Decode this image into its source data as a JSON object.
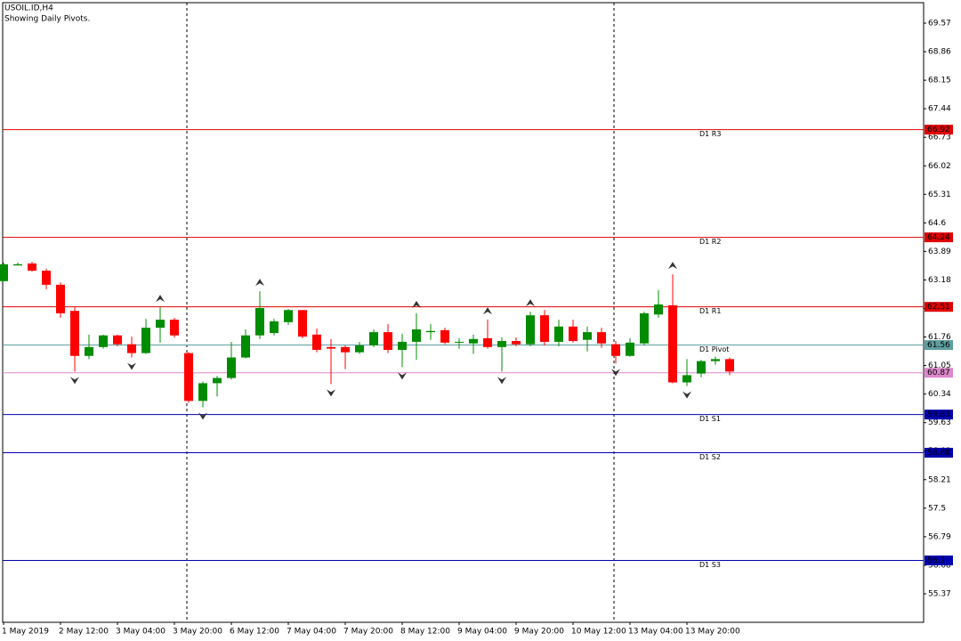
{
  "chart_data": {
    "type": "candlestick",
    "title": "USOIL.ID,H4",
    "subtitle": "Showing Daily Pivots.",
    "categories": [
      "1 May 2019",
      null,
      null,
      null,
      "2 May 12:00",
      null,
      null,
      null,
      "3 May 04:00",
      null,
      null,
      null,
      "3 May 20:00",
      null,
      null,
      null,
      "6 May 12:00",
      null,
      null,
      null,
      "7 May 04:00",
      null,
      null,
      null,
      "7 May 20:00",
      null,
      null,
      null,
      "8 May 12:00",
      null,
      null,
      null,
      "9 May 04:00",
      null,
      null,
      null,
      "9 May 20:00",
      null,
      null,
      null,
      "10 May 12:00",
      null,
      null,
      null,
      "13 May 04:00",
      null,
      null,
      null,
      "13 May 20:00",
      null,
      null,
      null
    ],
    "open": [
      63.15,
      63.54,
      63.59,
      63.41,
      63.06,
      62.41,
      61.29,
      61.51,
      61.8,
      61.58,
      61.36,
      61.99,
      62.19,
      61.36,
      60.17,
      60.61,
      60.74,
      61.25,
      61.8,
      61.86,
      62.13,
      62.43,
      61.82,
      61.51,
      61.51,
      61.38,
      61.55,
      61.88,
      61.44,
      61.64,
      61.88,
      61.93,
      61.62,
      61.6,
      61.73,
      61.51,
      61.66,
      61.58,
      62.3,
      61.64,
      62.02,
      61.69,
      61.88,
      61.58,
      61.29,
      61.6,
      62.32,
      62.55,
      60.63,
      60.85,
      61.16,
      61.21
    ],
    "high": [
      63.61,
      63.61,
      63.63,
      63.46,
      63.12,
      62.5,
      61.82,
      61.82,
      61.82,
      61.77,
      62.21,
      62.5,
      62.24,
      61.38,
      60.65,
      60.79,
      61.64,
      61.95,
      62.9,
      62.21,
      62.46,
      62.43,
      61.97,
      61.71,
      61.55,
      61.64,
      61.95,
      62.08,
      61.84,
      62.35,
      62.08,
      61.99,
      61.73,
      61.82,
      62.19,
      61.75,
      61.75,
      62.39,
      62.43,
      62.19,
      62.19,
      62.02,
      61.99,
      61.66,
      61.73,
      62.39,
      62.93,
      63.32,
      61.21,
      61.19,
      61.27,
      61.25
    ],
    "low": [
      63.15,
      63.54,
      63.39,
      62.95,
      62.24,
      60.9,
      61.21,
      61.47,
      61.53,
      61.25,
      61.34,
      61.62,
      61.75,
      60.12,
      60.01,
      60.28,
      60.7,
      61.23,
      61.71,
      61.8,
      62.06,
      61.73,
      61.38,
      60.59,
      60.96,
      61.34,
      61.51,
      61.36,
      61.01,
      61.19,
      61.69,
      61.58,
      61.47,
      61.34,
      61.47,
      60.9,
      61.53,
      61.53,
      61.55,
      61.53,
      61.62,
      61.4,
      61.49,
      61.1,
      61.27,
      61.55,
      62.24,
      60.61,
      60.54,
      60.76,
      61.07,
      60.81
    ],
    "close": [
      63.57,
      63.57,
      63.41,
      63.06,
      62.35,
      61.29,
      61.51,
      61.8,
      61.58,
      61.36,
      61.99,
      62.19,
      61.8,
      60.17,
      60.61,
      60.74,
      61.25,
      61.8,
      62.48,
      62.15,
      62.43,
      61.77,
      61.44,
      61.47,
      61.38,
      61.55,
      61.88,
      61.44,
      61.64,
      61.95,
      61.91,
      61.62,
      61.64,
      61.71,
      61.51,
      61.66,
      61.58,
      62.3,
      61.64,
      62.02,
      61.66,
      61.88,
      61.6,
      61.29,
      61.62,
      62.35,
      62.57,
      60.63,
      60.81,
      61.16,
      61.21,
      60.9
    ],
    "up_color": "#008c00",
    "down_color": "#ff0000",
    "ylim": [
      54.66,
      70.08
    ],
    "yticks": [
      69.57,
      68.86,
      68.15,
      67.44,
      66.73,
      66.02,
      65.31,
      64.6,
      63.89,
      63.18,
      62.47,
      61.76,
      61.05,
      60.34,
      59.63,
      58.92,
      58.21,
      57.5,
      56.79,
      56.08,
      55.37
    ],
    "levels": [
      {
        "name": "D1 R3",
        "value": 66.92,
        "color": "#e00000"
      },
      {
        "name": "D1 R2",
        "value": 64.24,
        "color": "#e00000"
      },
      {
        "name": "D1 R1",
        "value": 62.51,
        "color": "#e00000"
      },
      {
        "name": "D1 Pivot",
        "value": 61.56,
        "color": "#5f9ea0"
      },
      {
        "name": "D1 S1",
        "value": 59.83,
        "color": "#0000b0"
      },
      {
        "name": "D1 S2",
        "value": 58.88,
        "color": "#0000b0"
      },
      {
        "name": "D1 S3",
        "value": 56.2,
        "color": "#0000b0"
      }
    ],
    "price": {
      "value": 60.87,
      "color": "#dd88cc"
    },
    "separators": [
      13,
      43
    ],
    "fractals": {
      "up": [
        11,
        18,
        29,
        34,
        37,
        47
      ],
      "down": [
        5,
        9,
        14,
        23,
        28,
        35,
        43,
        48
      ]
    }
  }
}
